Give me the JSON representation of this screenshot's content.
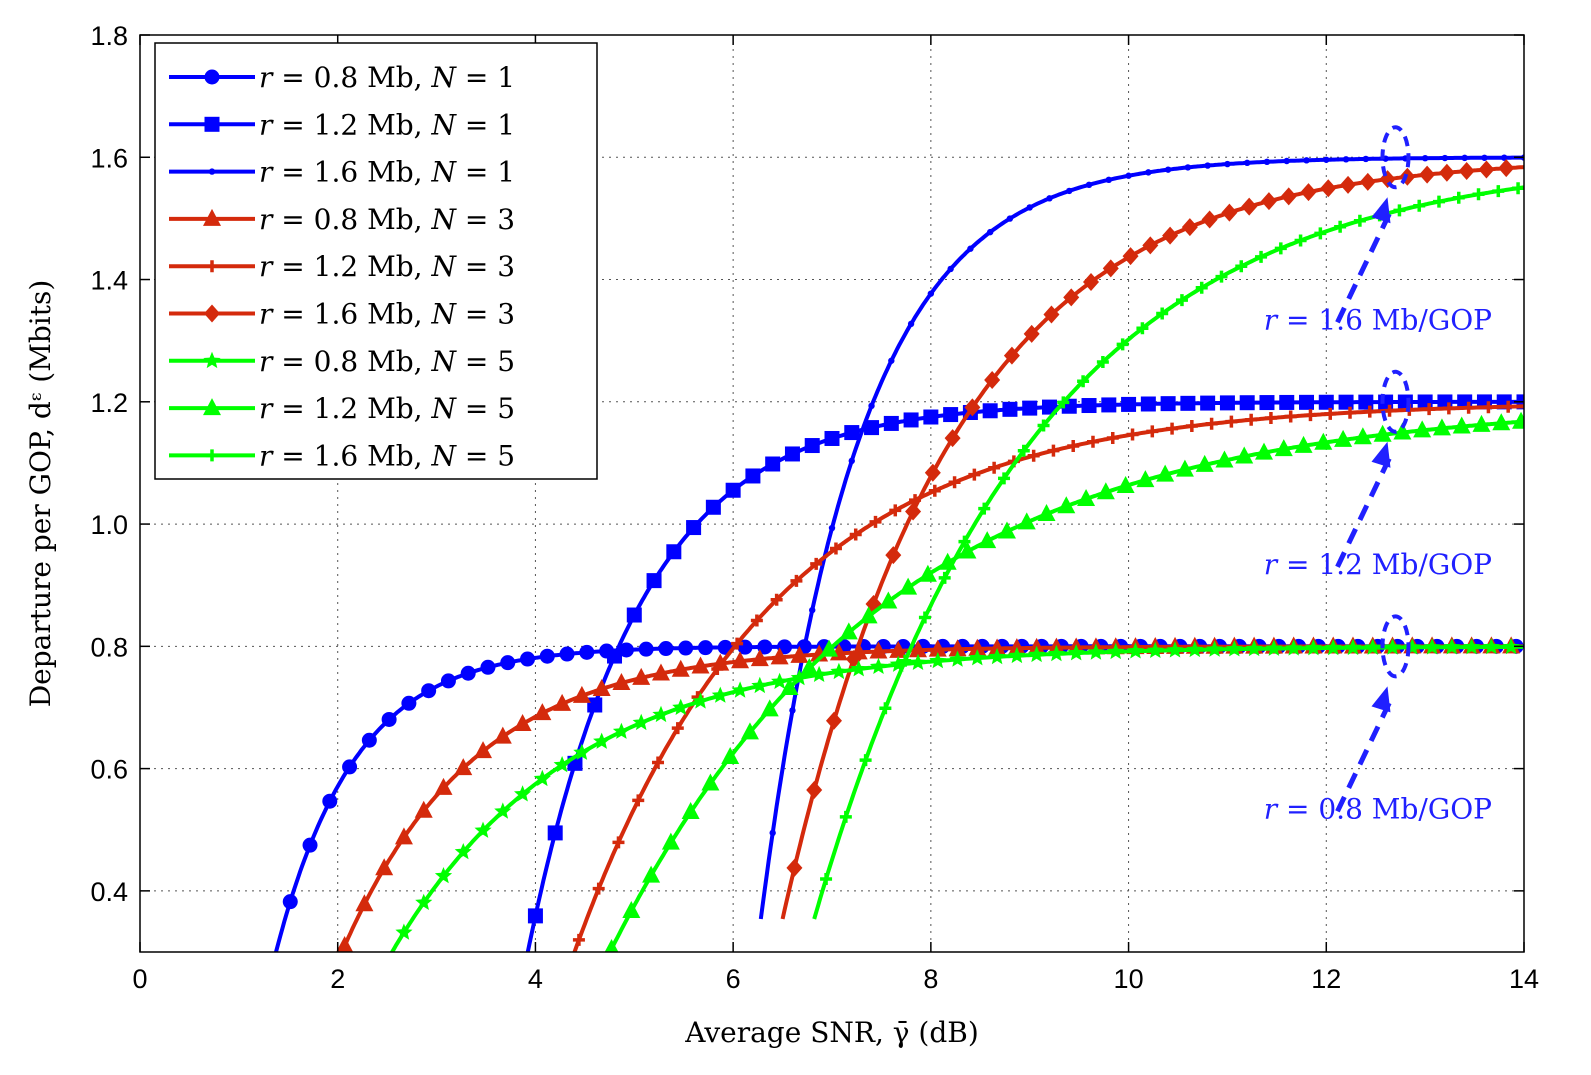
{
  "chart_data": {
    "type": "line",
    "title": "",
    "xlabel": "Average SNR, γ̄ (dB)",
    "ylabel": "Departure per GOP, dᵋ (Mbits)",
    "xlim": [
      0,
      14
    ],
    "ylim": [
      0.3,
      1.8
    ],
    "xticks": [
      0,
      2,
      4,
      6,
      8,
      10,
      12,
      14
    ],
    "yticks": [
      0.4,
      0.6,
      0.8,
      1.0,
      1.2,
      1.4,
      1.6,
      1.8
    ],
    "ytick_labels": [
      "0.4",
      "0.6",
      "0.8",
      "1.0",
      "1.2",
      "1.4",
      "1.6",
      "1.8"
    ],
    "grid": true,
    "legend_position": "top-left",
    "colors": {
      "blue": "#0000ff",
      "red": "#d42a0c",
      "green": "#00ff00",
      "annotation": "#2020ff"
    },
    "series": [
      {
        "name": "r = 0.8 Mb, N = 1",
        "color": "#0000ff",
        "marker": "circle",
        "r": 0.8,
        "x0": 1.2,
        "k": 1.25
      },
      {
        "name": "r = 1.2 Mb, N = 1",
        "color": "#0000ff",
        "marker": "square",
        "r": 1.2,
        "x0": 3.88,
        "k": 0.88
      },
      {
        "name": "r = 1.6 Mb, N = 1",
        "color": "#0000ff",
        "marker": "dot",
        "r": 1.6,
        "x0": 6.28,
        "k": 1.0
      },
      {
        "name": "r = 0.8 Mb, N = 3",
        "color": "#d42a0c",
        "marker": "triangle",
        "r": 0.8,
        "x0": 1.75,
        "k": 0.75
      },
      {
        "name": "r = 1.2 Mb, N = 3",
        "color": "#d42a0c",
        "marker": "plus",
        "r": 1.2,
        "x0": 4.32,
        "k": 0.5
      },
      {
        "name": "r = 1.6 Mb, N = 3",
        "color": "#d42a0c",
        "marker": "diamond",
        "r": 1.6,
        "x0": 6.5,
        "k": 0.58
      },
      {
        "name": "r = 0.8 Mb, N = 5",
        "color": "#00ff00",
        "marker": "star",
        "r": 0.8,
        "x0": 2.15,
        "k": 0.55
      },
      {
        "name": "r = 1.2 Mb, N = 5",
        "color": "#00ff00",
        "marker": "triangle",
        "r": 1.2,
        "x0": 4.65,
        "k": 0.36
      },
      {
        "name": "r = 1.6 Mb, N = 5",
        "color": "#00ff00",
        "marker": "plus",
        "r": 1.6,
        "x0": 6.82,
        "k": 0.45
      }
    ],
    "legend": [
      {
        "pre": "r",
        "mid": " = 0.8 Mb, ",
        "n": "N",
        "post": " = 1"
      },
      {
        "pre": "r",
        "mid": " = 1.2 Mb, ",
        "n": "N",
        "post": " = 1"
      },
      {
        "pre": "r",
        "mid": " = 1.6 Mb, ",
        "n": "N",
        "post": " = 1"
      },
      {
        "pre": "r",
        "mid": " = 0.8 Mb, ",
        "n": "N",
        "post": " = 3"
      },
      {
        "pre": "r",
        "mid": " = 1.2 Mb, ",
        "n": "N",
        "post": " = 3"
      },
      {
        "pre": "r",
        "mid": " = 1.6 Mb, ",
        "n": "N",
        "post": " = 3"
      },
      {
        "pre": "r",
        "mid": " = 0.8 Mb, ",
        "n": "N",
        "post": " = 5"
      },
      {
        "pre": "r",
        "mid": " = 1.2 Mb, ",
        "n": "N",
        "post": " = 5"
      },
      {
        "pre": "r",
        "mid": " = 1.6 Mb, ",
        "n": "N",
        "post": " = 5"
      }
    ],
    "annotations": [
      {
        "pre": "r",
        "text": " = 1.6 Mb/GOP",
        "x": 12.7,
        "y": 1.6
      },
      {
        "pre": "r",
        "text": " = 1.2 Mb/GOP",
        "x": 12.7,
        "y": 1.2
      },
      {
        "pre": "r",
        "text": " = 0.8 Mb/GOP",
        "x": 12.7,
        "y": 0.8
      }
    ]
  }
}
